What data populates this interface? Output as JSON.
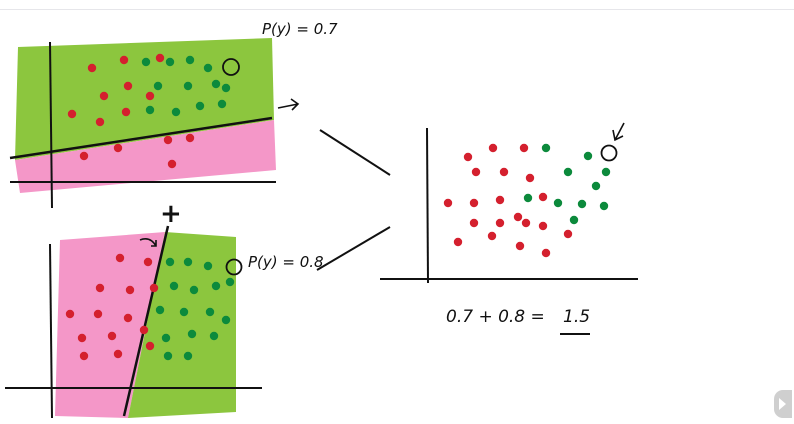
{
  "labels": {
    "prob_top": "P(y) = 0.7",
    "prob_bottom": "P(y) = 0.8",
    "plus": "+",
    "sum_left": "0.7 + 0.8 =",
    "sum_result": "1.5"
  },
  "colors": {
    "green_region": "#8cc63e",
    "pink_region": "#f497c8",
    "red_point": "#d4202e",
    "green_point": "#0c8a3c",
    "ink": "#111111"
  },
  "icons": [
    "next-slide-icon",
    "arrow-icon",
    "highlight-circle-icon"
  ]
}
